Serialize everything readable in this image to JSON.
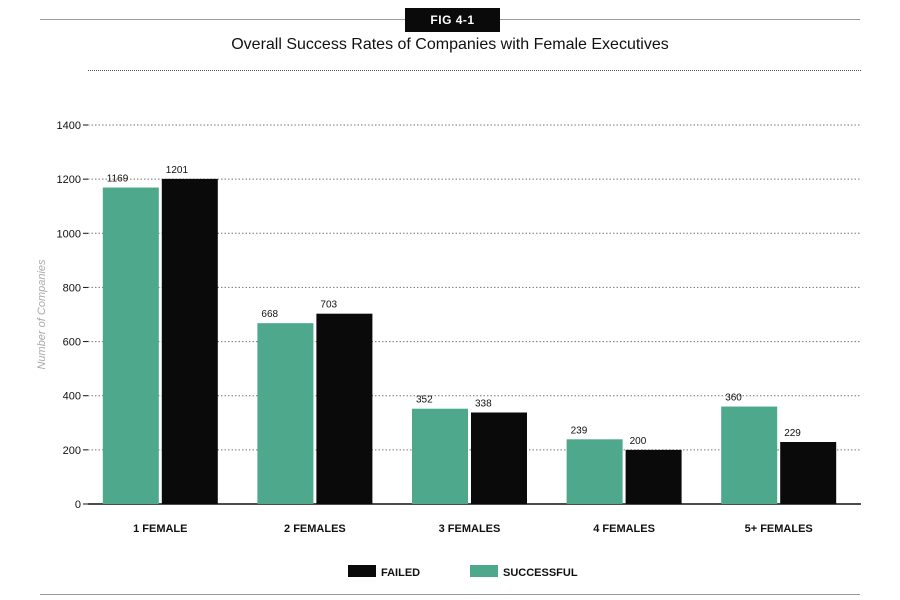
{
  "figure": {
    "badge": "FIG 4-1"
  },
  "chart_data": {
    "type": "bar",
    "title": "Overall Success Rates of Companies with Female Executives",
    "xlabel": "",
    "ylabel": "Number of Companies",
    "ylim": [
      0,
      1400
    ],
    "yticks": [
      0,
      200,
      400,
      600,
      800,
      1000,
      1200,
      1400
    ],
    "grid": true,
    "legend_position": "bottom-center",
    "categories": [
      "1 FEMALE",
      "2 FEMALES",
      "3 FEMALES",
      "4 FEMALES",
      "5+ FEMALES"
    ],
    "series": [
      {
        "name": "SUCCESSFUL",
        "color": "#4da88c",
        "values": [
          1169,
          668,
          352,
          239,
          360
        ],
        "value_labels": [
          "1169",
          "668",
          "352",
          "239",
          "360"
        ]
      },
      {
        "name": "FAILED",
        "color": "#0a0a0a",
        "values": [
          1201,
          703,
          338,
          200,
          229
        ],
        "value_labels": [
          "1201",
          "703",
          "338",
          "200",
          "229"
        ]
      }
    ],
    "legend_order": [
      "FAILED",
      "SUCCESSFUL"
    ]
  }
}
